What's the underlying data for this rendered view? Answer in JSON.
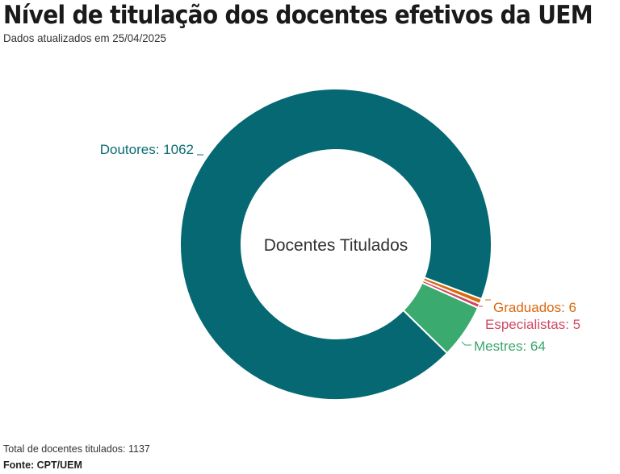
{
  "header": {
    "title": "Nível de titulação dos docentes efetivos da UEM",
    "subtitle": "Dados atualizados em 25/04/2025"
  },
  "footer": {
    "note": "Total de docentes titulados: 1137",
    "source": "Fonte: CPT/UEM"
  },
  "chart_data": {
    "type": "pie",
    "subtype": "donut",
    "title": "Nível de titulação dos docentes efetivos da UEM",
    "subtitle": "Dados atualizados em 25/04/2025",
    "center_label": "Docentes Titulados",
    "categories": [
      "Doutores",
      "Graduados",
      "Especialistas",
      "Mestres"
    ],
    "values": [
      1062,
      6,
      5,
      64
    ],
    "colors": [
      "#066872",
      "#d96a0b",
      "#d1465f",
      "#3aaa6e"
    ],
    "total": 1137,
    "labels": [
      "Doutores: 1062",
      "Graduados: 6",
      "Especialistas: 5",
      "Mestres: 64"
    ],
    "legend": "none (direct labels)"
  }
}
